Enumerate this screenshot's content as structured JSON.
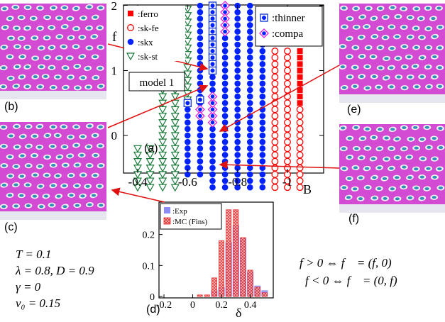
{
  "panel_labels": {
    "a": "(a)",
    "b": "(b)",
    "c": "(c)",
    "d": "(d)",
    "e": "(e)",
    "f": "(f)"
  },
  "params": {
    "line1": "T = 0.1",
    "line2": "λ = 0.8, D = 0.9",
    "line3": "γ = 0",
    "line4": "v₀ = 0.15"
  },
  "conditions": {
    "line1": "f > 0 ⇔ f⃗ = (f, 0)",
    "line2": "f < 0 ⇔ f⃗ = (0, f)"
  },
  "colors": {
    "ferro": "#ff0000",
    "skfe": "#ff0000",
    "skx": "#0022ff",
    "skst": "#1a7a3a",
    "exp": "#8c8cf5",
    "mc": "#e52020",
    "arrow": "#e01010",
    "skin_bg": "#d24bd2",
    "skin_dot": "#2f8fb5"
  },
  "chart_data": [
    {
      "type": "scatter",
      "title": "model 1",
      "panel": "(a)",
      "xlabel": "B",
      "ylabel": "f",
      "xlim": [
        -0.35,
        -1.1
      ],
      "ylim": [
        -0.85,
        2.0
      ],
      "xticks": [
        -0.4,
        -0.6,
        -0.8,
        -1
      ],
      "xtick_labels": [
        "-0.4",
        "-0.6",
        "-0.8",
        "-1"
      ],
      "yticks": [
        0,
        1,
        2
      ],
      "ytick_labels": [
        "0",
        "1",
        "2"
      ],
      "legend_left": [
        {
          "key": "ferro",
          "label": ":ferro",
          "marker": "square-filled"
        },
        {
          "key": "skfe",
          "label": ":sk-fe",
          "marker": "circle-open"
        },
        {
          "key": "skx",
          "label": ":skx",
          "marker": "circle-filled"
        },
        {
          "key": "skst",
          "label": ":sk-st",
          "marker": "triangle-down-open"
        }
      ],
      "legend_right": [
        {
          "key": "thinner",
          "label": ":thinner",
          "marker": "square-dot"
        },
        {
          "key": "compa",
          "label": ":compa",
          "marker": "diamond-open"
        }
      ],
      "columns": [
        {
          "B": -0.4,
          "phases": [
            [
              "skst",
              -0.8,
              -0.2
            ]
          ]
        },
        {
          "B": -0.45,
          "phases": [
            [
              "skst",
              -0.8,
              -0.2
            ]
          ]
        },
        {
          "B": -0.5,
          "phases": [
            [
              "skst",
              -0.8,
              0.8
            ]
          ]
        },
        {
          "B": -0.55,
          "phases": [
            [
              "skst",
              -0.8,
              0.8
            ]
          ]
        },
        {
          "B": -0.6,
          "phases": [
            [
              "skx",
              -0.6,
              0.45
            ],
            [
              "skst",
              0.55,
              2.0
            ]
          ]
        },
        {
          "B": -0.65,
          "phases": [
            [
              "skx",
              -0.6,
              2.0
            ]
          ]
        },
        {
          "B": -0.7,
          "phases": [
            [
              "skx",
              -0.8,
              2.0
            ]
          ]
        },
        {
          "B": -0.75,
          "phases": [
            [
              "skx",
              -0.8,
              2.0
            ]
          ]
        },
        {
          "B": -0.8,
          "phases": [
            [
              "skx",
              -0.8,
              2.0
            ]
          ]
        },
        {
          "B": -0.85,
          "phases": [
            [
              "skx",
              -0.8,
              2.0
            ]
          ]
        },
        {
          "B": -0.9,
          "phases": [
            [
              "skx",
              -0.8,
              1.7
            ]
          ]
        },
        {
          "B": -0.95,
          "phases": [
            [
              "skfe",
              -0.8,
              1.3
            ]
          ]
        },
        {
          "B": -1.0,
          "phases": [
            [
              "skfe",
              -0.8,
              1.3
            ]
          ]
        },
        {
          "B": -1.05,
          "phases": [
            [
              "skfe",
              -0.8,
              0.4
            ],
            [
              "ferro",
              0.5,
              1.3
            ]
          ]
        }
      ],
      "thinner_points": [
        [
          -0.6,
          0.5
        ],
        [
          -0.65,
          0.55
        ],
        [
          -0.7,
          2.0
        ],
        [
          -0.7,
          1.9
        ],
        [
          -0.7,
          1.8
        ],
        [
          -0.7,
          1.7
        ],
        [
          -0.7,
          1.6
        ],
        [
          -0.7,
          1.5
        ],
        [
          -0.7,
          1.4
        ],
        [
          -0.7,
          1.3
        ],
        [
          -0.7,
          1.2
        ],
        [
          -0.7,
          1.1
        ],
        [
          -0.7,
          1.0
        ]
      ],
      "compa_points": [
        [
          -0.65,
          0.4
        ],
        [
          -0.65,
          0.3
        ],
        [
          -0.7,
          0.2
        ],
        [
          -0.7,
          0.3
        ],
        [
          -0.7,
          0.4
        ],
        [
          -0.7,
          0.5
        ],
        [
          -0.7,
          0.6
        ],
        [
          -0.75,
          2.0
        ],
        [
          -0.75,
          1.9
        ],
        [
          -0.75,
          1.8
        ],
        [
          -0.75,
          1.7
        ],
        [
          -0.75,
          1.6
        ]
      ]
    },
    {
      "type": "bar",
      "panel": "(d)",
      "xlabel": "δ",
      "ylabel": "",
      "xlim": [
        -0.2,
        0.55
      ],
      "ylim": [
        0,
        0.3
      ],
      "xticks": [
        -0.2,
        0,
        0.2,
        0.4
      ],
      "xtick_labels": [
        "-0.2",
        "0",
        "0.2",
        "0.4"
      ],
      "yticks": [
        0,
        0.1,
        0.2
      ],
      "ytick_labels": [
        "0",
        "0.1",
        "0.2"
      ],
      "bin_width": 0.05,
      "series": [
        {
          "name": ":Exp",
          "key": "exp",
          "x": [
            0.1,
            0.15,
            0.2,
            0.25,
            0.3,
            0.35,
            0.4,
            0.45,
            0.5
          ],
          "values": [
            0.0,
            0.02,
            0.03,
            0.175,
            0.23,
            0.19,
            0.08,
            0.035,
            0.02
          ]
        },
        {
          "name": ":MC (Fins)",
          "key": "mc",
          "x": [
            0.05,
            0.1,
            0.15,
            0.2,
            0.25,
            0.3,
            0.35,
            0.4,
            0.45,
            0.5
          ],
          "values": [
            0.005,
            0.005,
            0.06,
            0.18,
            0.28,
            0.28,
            0.19,
            0.085,
            0.03,
            0.012
          ]
        }
      ]
    }
  ]
}
